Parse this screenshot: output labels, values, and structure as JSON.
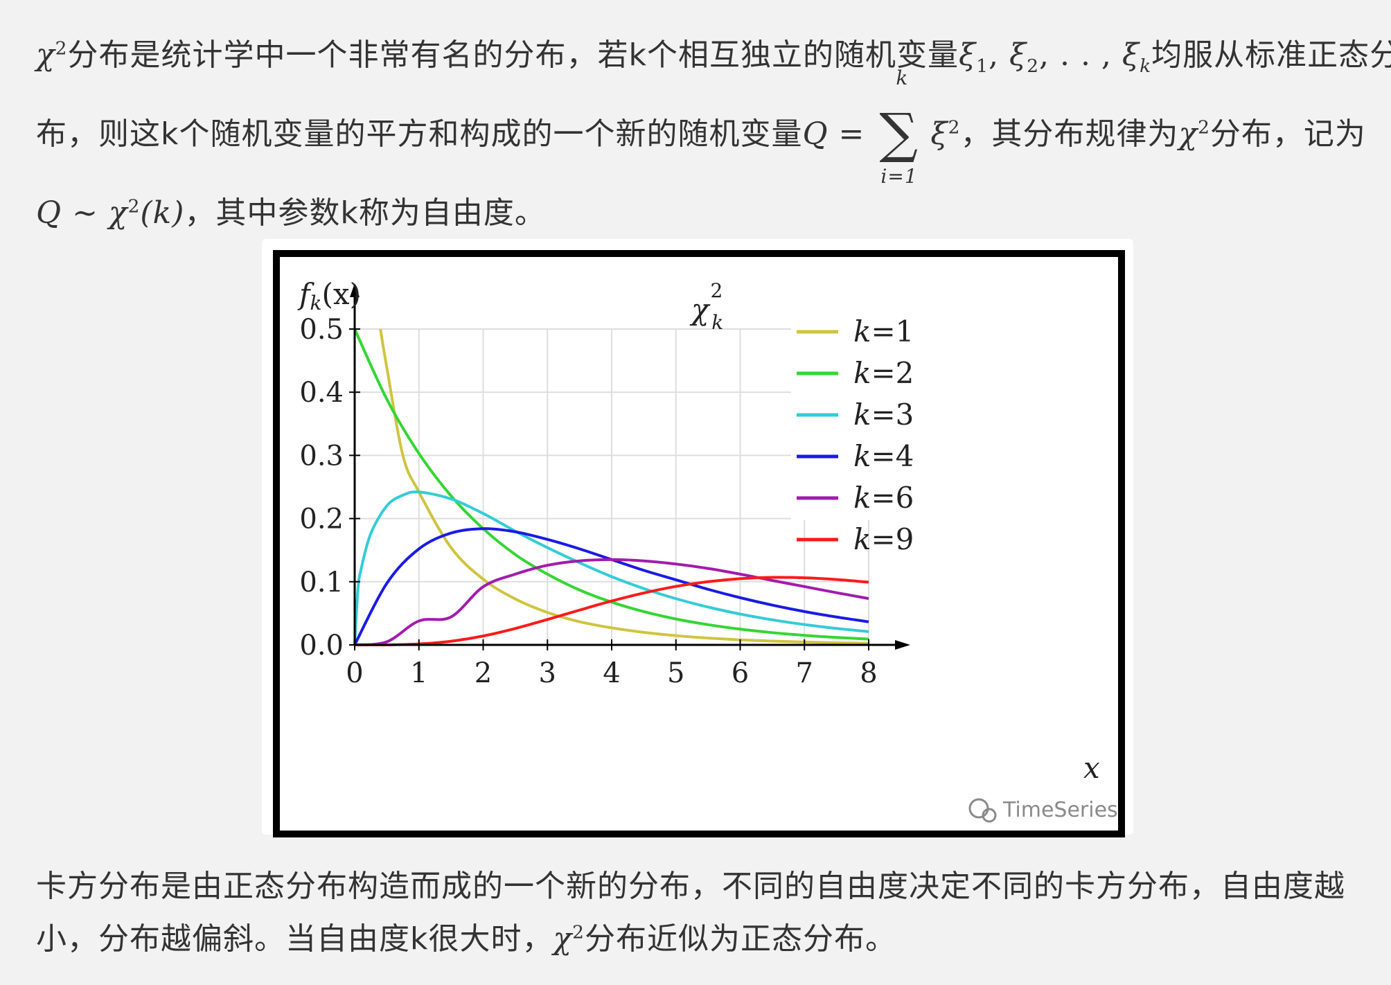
{
  "paragraph1": {
    "chi": "χ",
    "sup2": "2",
    "text_a": "分布是统计学中一个非常有名的分布，若k个相互独立的随机变量",
    "xi_list": "ξ",
    "sub1": "1",
    "sep1": ", ",
    "xi2": "ξ",
    "sub2": "2",
    "dots": ", . . , ",
    "xik": "ξ",
    "subk": "k",
    "text_b": "均服从标准正态分",
    "text_c": "布，则这k个随机变量的平方和构成的一个新的随机变量",
    "Q": "Q",
    "eq": " = ",
    "sigma": "∑",
    "sum_upper": "k",
    "sum_lower": "i=1",
    "xi_sq": "ξ",
    "sq": "2",
    "text_d": "，其分布规律为",
    "chi2": "χ",
    "sup2b": "2",
    "text_e": "分布，记为",
    "Q2": "Q",
    "sim": " ∼ ",
    "chi3": "χ",
    "sup2c": "2",
    "paren_k": "(k)",
    "text_f": "，其中参数k称为自由度。"
  },
  "paragraph2": {
    "text_a": "卡方分布是由正态分布构造而成的一个新的分布，不同的自由度决定不同的卡方分布，自由度越",
    "text_b": "小，分布越偏斜。当自由度k很大时，",
    "chi": "χ",
    "sup2": "2",
    "text_c": "分布近似为正态分布。"
  },
  "watermark": {
    "text": "TimeSeries",
    "icon": "wechat-icon"
  },
  "chart_data": {
    "type": "line",
    "title": "χ²ₖ",
    "title_main": "χ",
    "title_sup": "2",
    "title_sub": "k",
    "ylabel": "fₖ(x)",
    "ylabel_main": "f",
    "ylabel_sub": "k",
    "ylabel_arg": "(x)",
    "xlabel": "x",
    "xlim": [
      0,
      8
    ],
    "ylim": [
      0,
      0.5
    ],
    "x_ticks": [
      "0",
      "1",
      "2",
      "3",
      "4",
      "5",
      "6",
      "7",
      "8"
    ],
    "y_ticks": [
      "0.0",
      "0.1",
      "0.2",
      "0.3",
      "0.4",
      "0.5"
    ],
    "grid": true,
    "legend_position": "top-right",
    "colors": {
      "k1": "#cfc440",
      "k2": "#33d633",
      "k3": "#33ccd6",
      "k4": "#1a1ae6",
      "k6": "#a31aad",
      "k9": "#ff1a1a"
    },
    "series": [
      {
        "name": "k=1",
        "k": 1,
        "color": "#cfc440",
        "x": [
          0.4,
          0.5,
          0.75,
          1,
          1.5,
          2,
          2.5,
          3,
          3.5,
          4,
          4.5,
          5,
          5.5,
          6,
          6.5,
          7,
          7.5,
          8
        ],
        "y": [
          0.5,
          0.439,
          0.3,
          0.242,
          0.154,
          0.104,
          0.0727,
          0.0514,
          0.0367,
          0.027,
          0.0199,
          0.0146,
          0.0108,
          0.008,
          0.006,
          0.0045,
          0.0033,
          0.0025
        ]
      },
      {
        "name": "k=2",
        "k": 2,
        "color": "#33d633",
        "x": [
          0,
          0.5,
          1,
          1.5,
          2,
          2.5,
          3,
          3.5,
          4,
          4.5,
          5,
          5.5,
          6,
          6.5,
          7,
          7.5,
          8
        ],
        "y": [
          0.5,
          0.389,
          0.303,
          0.236,
          0.184,
          0.143,
          0.112,
          0.0869,
          0.0677,
          0.0527,
          0.041,
          0.032,
          0.0249,
          0.0194,
          0.0151,
          0.0118,
          0.0092
        ]
      },
      {
        "name": "k=3",
        "k": 3,
        "color": "#33ccd6",
        "x": [
          0,
          0.05,
          0.1,
          0.25,
          0.5,
          0.75,
          1,
          1.5,
          2,
          2.5,
          3,
          3.5,
          4,
          4.5,
          5,
          5.5,
          6,
          6.5,
          7,
          7.5,
          8
        ],
        "y": [
          0,
          0.0872,
          0.12,
          0.176,
          0.22,
          0.237,
          0.242,
          0.231,
          0.208,
          0.18,
          0.154,
          0.13,
          0.108,
          0.0891,
          0.0732,
          0.0599,
          0.0488,
          0.0397,
          0.0322,
          0.026,
          0.021
        ]
      },
      {
        "name": "k=4",
        "k": 4,
        "color": "#1a1ae6",
        "x": [
          0,
          0.5,
          1,
          1.5,
          2,
          2.5,
          3,
          3.5,
          4,
          4.5,
          5,
          5.5,
          6,
          6.5,
          7,
          7.5,
          8
        ],
        "y": [
          0,
          0.0974,
          0.152,
          0.177,
          0.184,
          0.179,
          0.167,
          0.152,
          0.135,
          0.118,
          0.103,
          0.088,
          0.0747,
          0.063,
          0.0528,
          0.0441,
          0.0366
        ]
      },
      {
        "name": "k=6",
        "k": 6,
        "color": "#a31aad",
        "x": [
          0,
          0.5,
          1,
          1.5,
          2,
          2.5,
          3,
          3.5,
          4,
          4.5,
          5,
          5.5,
          6,
          6.5,
          7,
          7.5,
          8
        ],
        "y": [
          0,
          0.0049,
          0.0379,
          0.0443,
          0.092,
          0.112,
          0.126,
          0.133,
          0.135,
          0.133,
          0.128,
          0.121,
          0.112,
          0.102,
          0.0923,
          0.0826,
          0.0733
        ]
      },
      {
        "name": "k=9",
        "k": 9,
        "color": "#ff1a1a",
        "x": [
          0,
          0.5,
          1,
          1.5,
          2,
          2.5,
          3,
          3.5,
          4,
          4.5,
          5,
          5.5,
          6,
          6.5,
          7,
          7.5,
          8
        ],
        "y": [
          0,
          0.0001,
          0.0015,
          0.0058,
          0.0141,
          0.026,
          0.0402,
          0.0551,
          0.0695,
          0.0822,
          0.0926,
          0.1001,
          0.1049,
          0.1069,
          0.1062,
          0.1035,
          0.0992
        ]
      }
    ]
  }
}
